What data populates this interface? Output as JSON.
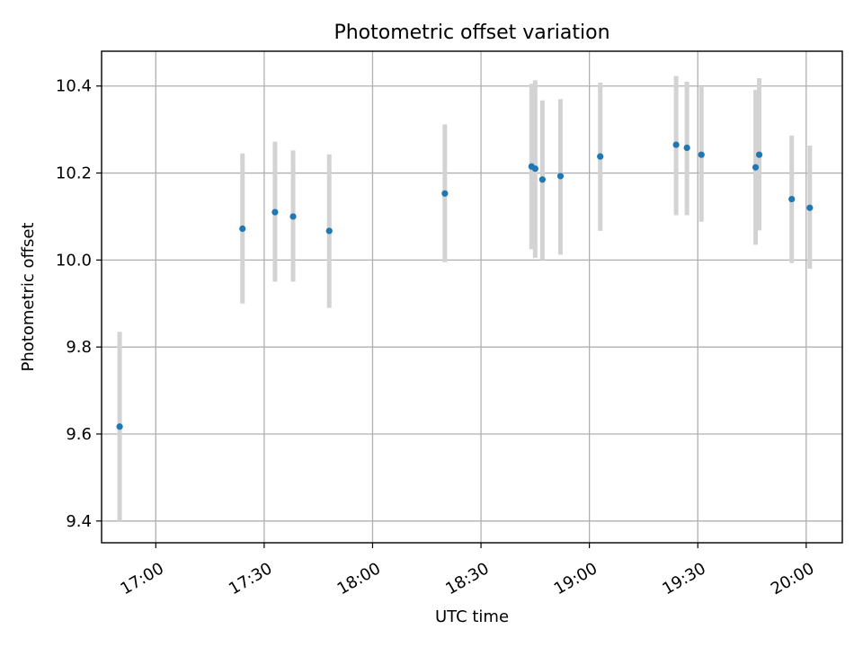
{
  "chart_data": {
    "type": "scatter",
    "title": "Photometric offset variation",
    "xlabel": "UTC time",
    "ylabel": "Photometric offset",
    "xlim": [
      "16:45",
      "20:10"
    ],
    "ylim": [
      9.35,
      10.48
    ],
    "grid": true,
    "x_ticks": [
      "17:00",
      "17:30",
      "18:00",
      "18:30",
      "19:00",
      "19:30",
      "20:00"
    ],
    "y_ticks": [
      "9.4",
      "9.6",
      "9.8",
      "10.0",
      "10.2",
      "10.4"
    ],
    "series": [
      {
        "points": [
          {
            "x": "16:50",
            "y": 9.617,
            "err_low": 9.4,
            "err_high": 9.835
          },
          {
            "x": "17:24",
            "y": 10.072,
            "err_low": 9.9,
            "err_high": 10.245
          },
          {
            "x": "17:33",
            "y": 10.11,
            "err_low": 9.95,
            "err_high": 10.272
          },
          {
            "x": "17:38",
            "y": 10.1,
            "err_low": 9.95,
            "err_high": 10.252
          },
          {
            "x": "17:48",
            "y": 10.067,
            "err_low": 9.89,
            "err_high": 10.243
          },
          {
            "x": "18:20",
            "y": 10.153,
            "err_low": 9.995,
            "err_high": 10.312
          },
          {
            "x": "18:44",
            "y": 10.215,
            "err_low": 10.025,
            "err_high": 10.405
          },
          {
            "x": "18:45",
            "y": 10.21,
            "err_low": 10.005,
            "err_high": 10.413
          },
          {
            "x": "18:47",
            "y": 10.185,
            "err_low": 10.0,
            "err_high": 10.367
          },
          {
            "x": "18:52",
            "y": 10.193,
            "err_low": 10.012,
            "err_high": 10.37
          },
          {
            "x": "19:03",
            "y": 10.238,
            "err_low": 10.067,
            "err_high": 10.408
          },
          {
            "x": "19:24",
            "y": 10.265,
            "err_low": 10.103,
            "err_high": 10.423
          },
          {
            "x": "19:27",
            "y": 10.258,
            "err_low": 10.103,
            "err_high": 10.41
          },
          {
            "x": "19:31",
            "y": 10.242,
            "err_low": 10.088,
            "err_high": 10.398
          },
          {
            "x": "19:46",
            "y": 10.213,
            "err_low": 10.035,
            "err_high": 10.391
          },
          {
            "x": "19:47",
            "y": 10.242,
            "err_low": 10.068,
            "err_high": 10.418
          },
          {
            "x": "19:56",
            "y": 10.14,
            "err_low": 9.993,
            "err_high": 10.286
          },
          {
            "x": "20:01",
            "y": 10.12,
            "err_low": 9.98,
            "err_high": 10.263
          }
        ]
      }
    ],
    "colors": {
      "marker": "#1f77b4",
      "errorbar": "#d3d3d3",
      "grid": "#b0b0b0",
      "axis": "#000000"
    }
  }
}
